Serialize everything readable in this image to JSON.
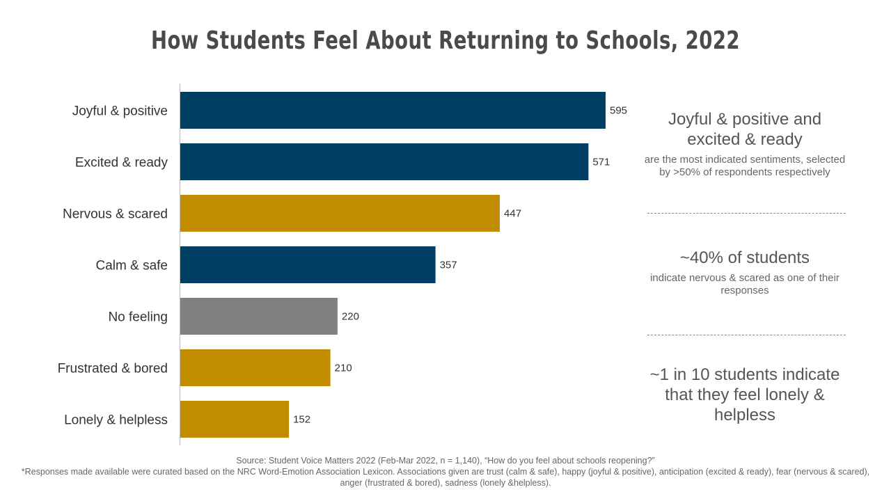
{
  "chart_data": {
    "type": "bar",
    "orientation": "horizontal",
    "title": "How Students Feel About Returning to Schools, 2022",
    "categories": [
      "Joyful & positive",
      "Excited & ready",
      "Nervous & scared",
      "Calm & safe",
      "No feeling",
      "Frustrated & bored",
      "Lonely & helpless"
    ],
    "values": [
      595,
      571,
      447,
      357,
      220,
      210,
      152
    ],
    "bar_colors": [
      "#003f63",
      "#003f63",
      "#c18c00",
      "#003f63",
      "#808080",
      "#c18c00",
      "#c18c00"
    ],
    "xlim": [
      0,
      595
    ],
    "grid": false
  },
  "callouts": [
    {
      "head": "Joyful & positive and excited & ready",
      "sub": "are the most indicated sentiments, selected by >50% of respondents respectively"
    },
    {
      "head": "~40% of students",
      "sub": "indicate nervous & scared as one of their responses"
    },
    {
      "head": "~1 in 10 students indicate that they feel lonely & helpless",
      "sub": ""
    }
  ],
  "source": "Source: Student Voice Matters 2022 (Feb-Mar 2022, n = 1,140), “How do you feel about schools reopening?”",
  "footnote": "*Responses made available were curated based on the NRC Word-Emotion Association Lexicon. Associations given are trust (calm & safe), happy (joyful & positive), anticipation (excited & ready), fear (nervous & scared), anger (frustrated & bored), sadness (lonely &helpless)."
}
